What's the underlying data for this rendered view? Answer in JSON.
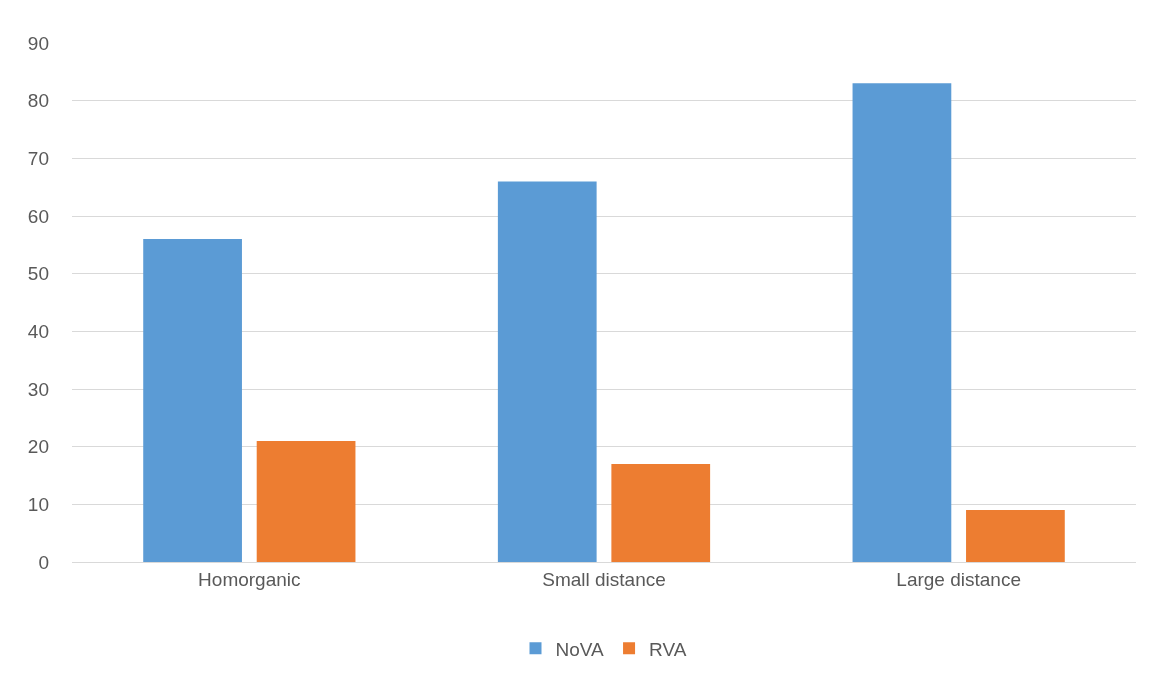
{
  "chart_data": {
    "type": "bar",
    "categories": [
      "Homorganic",
      "Small distance",
      "Large distance"
    ],
    "series": [
      {
        "name": "NoVA",
        "color": "#5b9bd5",
        "values": [
          56,
          66,
          83
        ]
      },
      {
        "name": "RVA",
        "color": "#ed7d31",
        "values": [
          21,
          17,
          9
        ]
      }
    ],
    "ylim": [
      0,
      90
    ],
    "yticks": [
      0,
      10,
      20,
      30,
      40,
      50,
      60,
      70,
      80,
      90
    ],
    "grid": "y",
    "legend": "bottom"
  }
}
